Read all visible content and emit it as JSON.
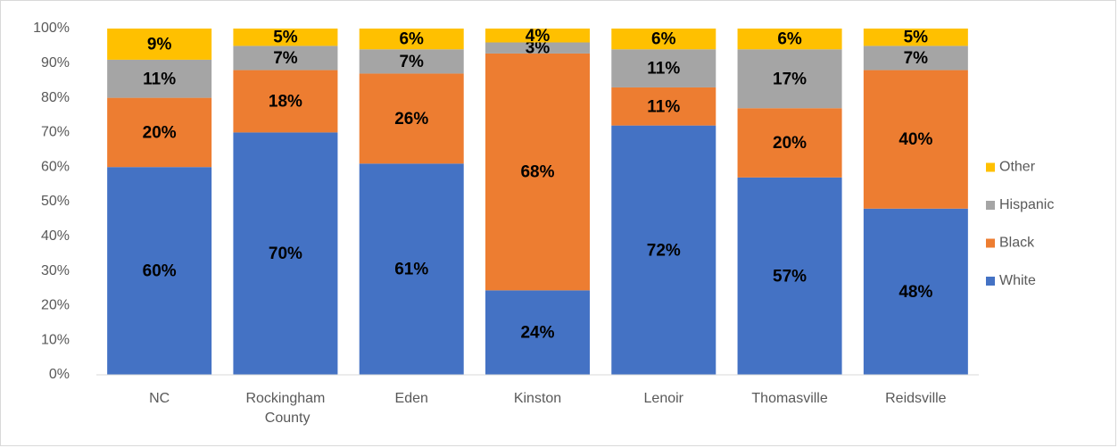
{
  "chart_data": {
    "type": "stacked_bar",
    "categories": [
      "NC",
      "Rockingham County",
      "Eden",
      "Kinston",
      "Lenoir",
      "Thomasville",
      "Reidsville"
    ],
    "series": [
      {
        "name": "White",
        "color": "#4472c4",
        "values": [
          60,
          70,
          61,
          24.4,
          72,
          57,
          48
        ],
        "value_labels": [
          "60%",
          "70%",
          "61%",
          "24%",
          "72%",
          "57%",
          "48%"
        ]
      },
      {
        "name": "Black",
        "color": "#ed7d31",
        "values": [
          20,
          18,
          26,
          68.4,
          11,
          20,
          40
        ],
        "value_labels": [
          "20%",
          "18%",
          "26%",
          "68%",
          "11%",
          "20%",
          "40%"
        ]
      },
      {
        "name": "Hispanic",
        "color": "#a5a5a5",
        "values": [
          11,
          7,
          7,
          3.2,
          11,
          17,
          7
        ],
        "value_labels": [
          "11%",
          "7%",
          "7%",
          "3%",
          "11%",
          "17%",
          "7%"
        ]
      },
      {
        "name": "Other",
        "color": "#ffc000",
        "values": [
          9,
          5,
          6,
          4,
          6,
          6,
          5
        ],
        "value_labels": [
          "9%",
          "5%",
          "6%",
          "4%",
          "6%",
          "6%",
          "5%"
        ]
      }
    ],
    "ylim": [
      0,
      100
    ],
    "yticks": [
      {
        "value": 0,
        "label": "0%"
      },
      {
        "value": 10,
        "label": "10%"
      },
      {
        "value": 20,
        "label": "20%"
      },
      {
        "value": 30,
        "label": "30%"
      },
      {
        "value": 40,
        "label": "40%"
      },
      {
        "value": 50,
        "label": "50%"
      },
      {
        "value": 60,
        "label": "60%"
      },
      {
        "value": 70,
        "label": "70%"
      },
      {
        "value": 80,
        "label": "80%"
      },
      {
        "value": 90,
        "label": "90%"
      },
      {
        "value": 100,
        "label": "100%"
      }
    ],
    "grid": false,
    "legend": "right"
  }
}
